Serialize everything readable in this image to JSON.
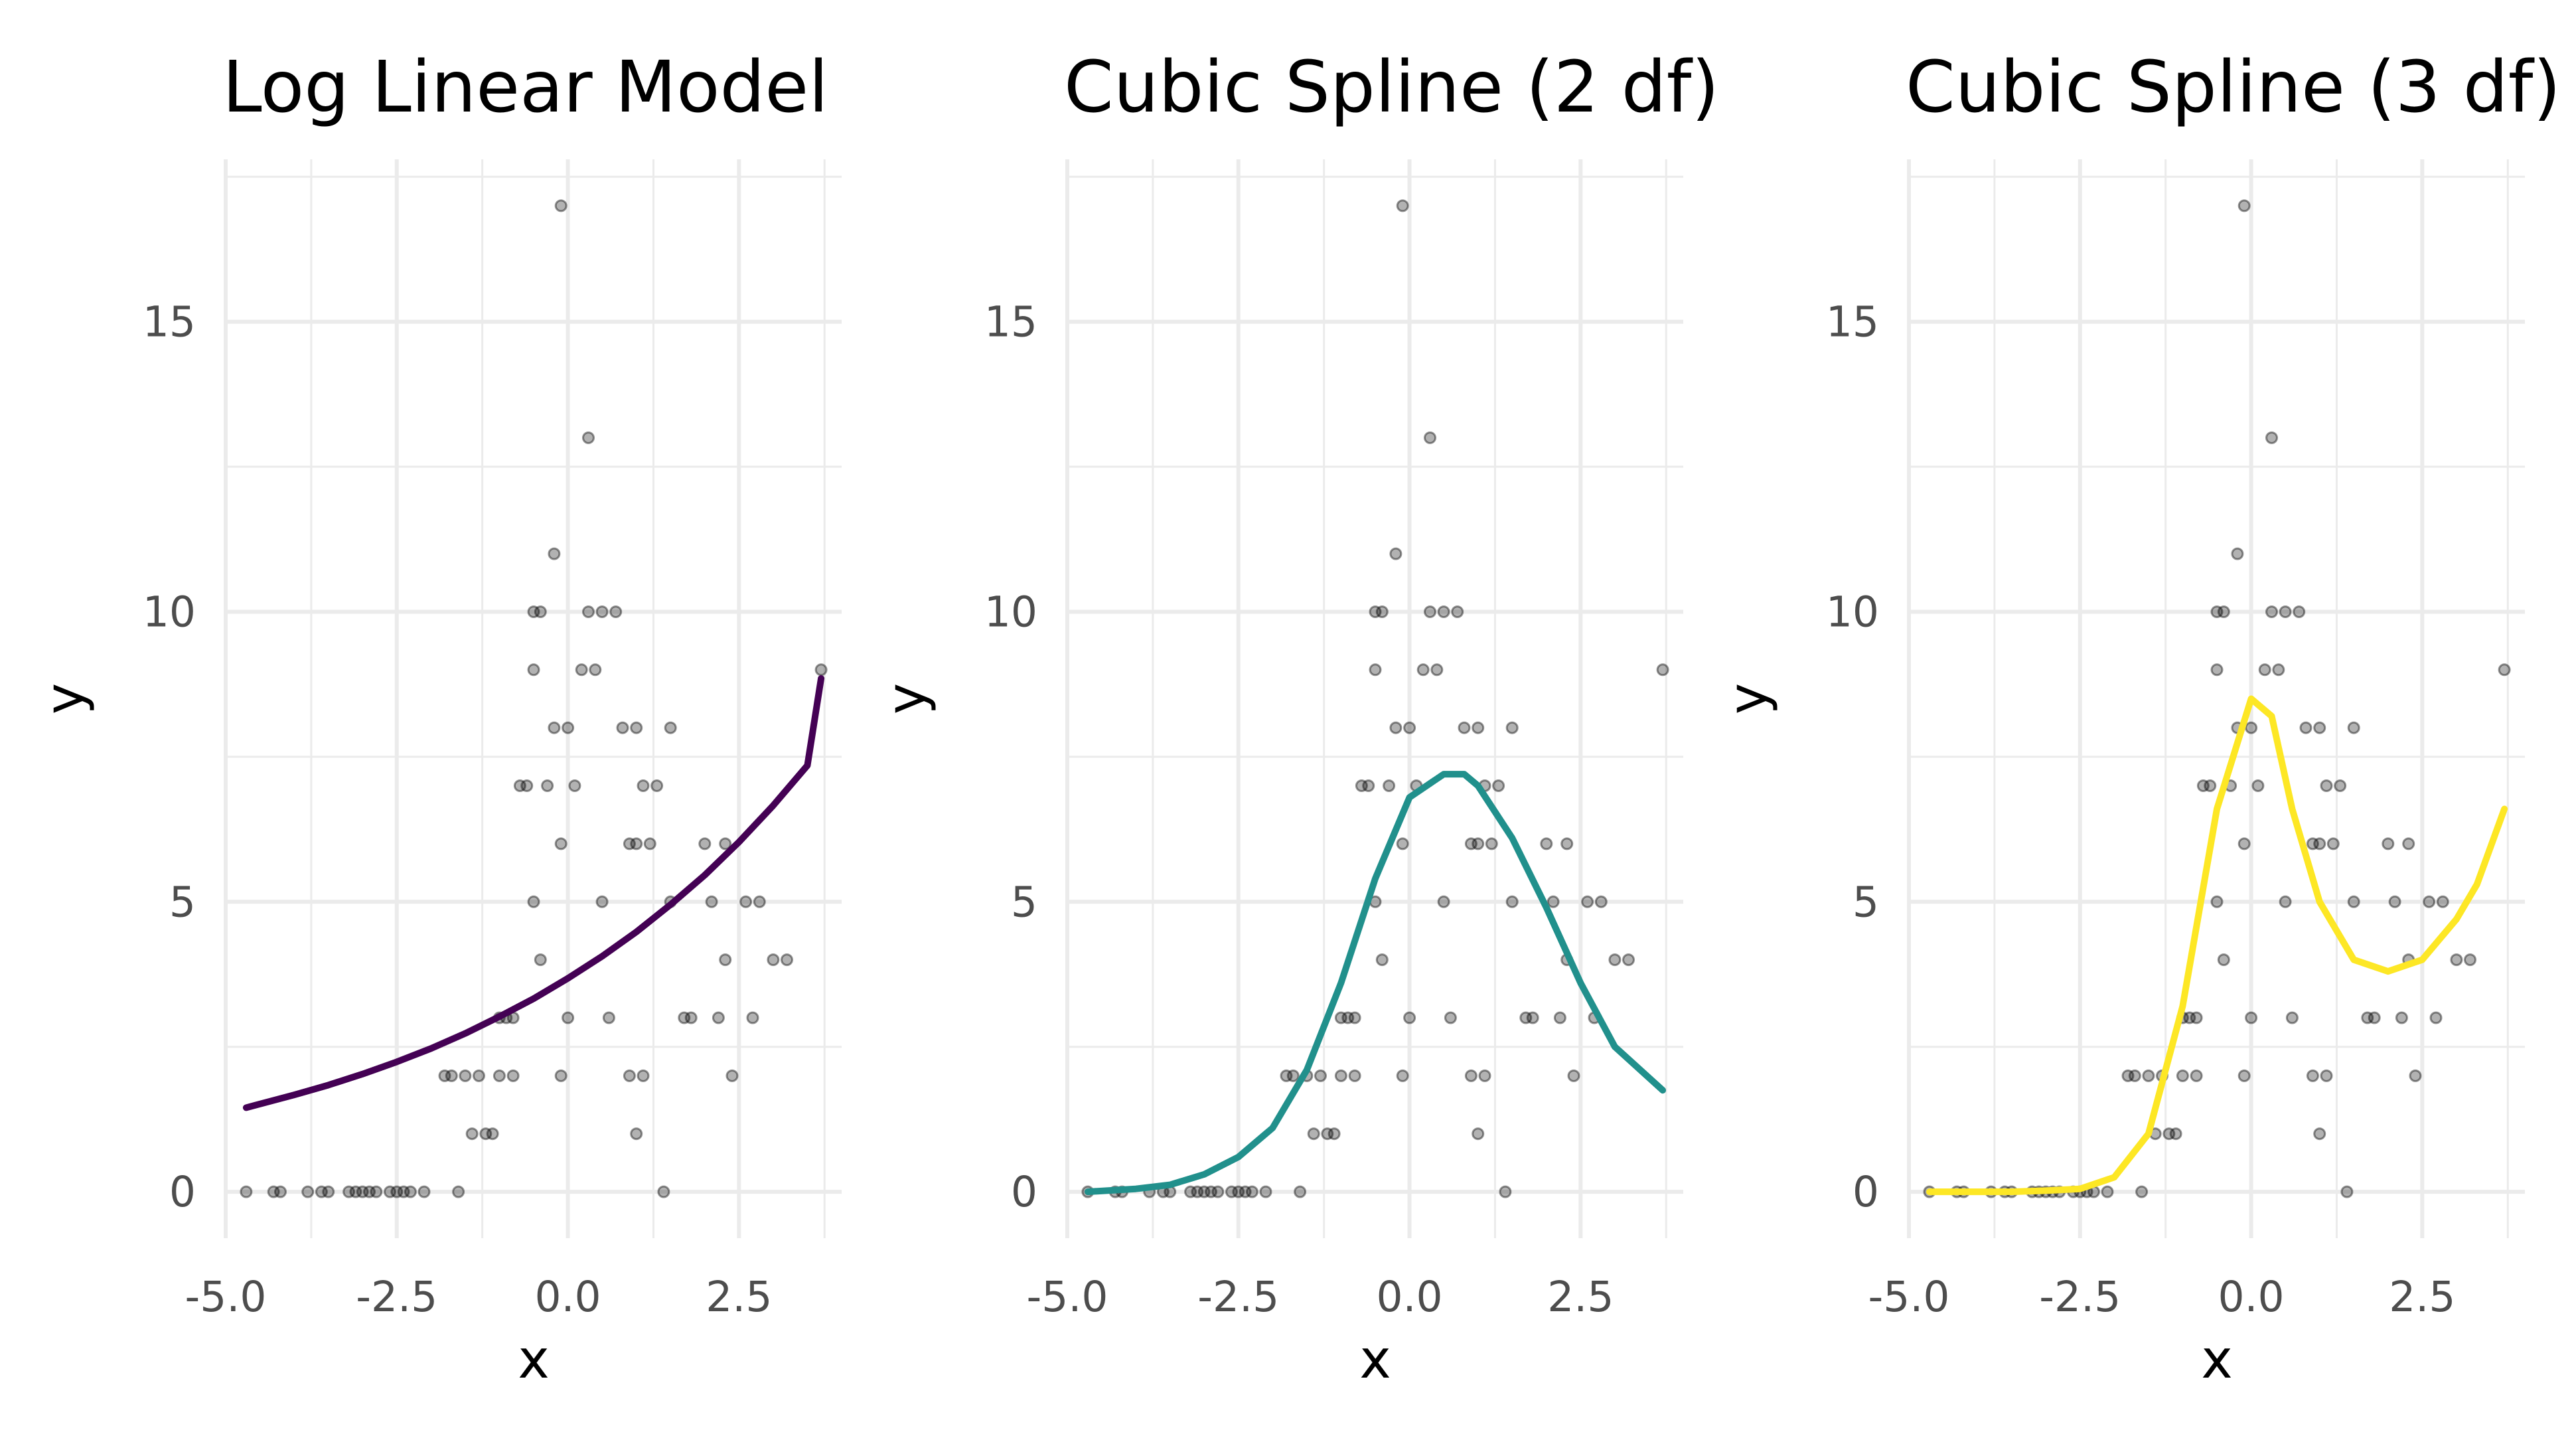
{
  "chart_data": [
    {
      "type": "scatter",
      "title": "Log Linear Model",
      "xlabel": "x",
      "ylabel": "y",
      "xlim": [
        -5.0,
        4.0
      ],
      "ylim": [
        -0.8,
        17.8
      ],
      "xticks": [
        "-5.0",
        "-2.5",
        "0.0",
        "2.5"
      ],
      "yticks": [
        "0",
        "5",
        "10",
        "15"
      ],
      "grid": true,
      "curve_color": "#440154",
      "curve": {
        "x": [
          -4.7,
          -4.0,
          -3.5,
          -3.0,
          -2.5,
          -2.0,
          -1.5,
          -1.0,
          -0.5,
          0.0,
          0.5,
          1.0,
          1.5,
          2.0,
          2.5,
          3.0,
          3.5,
          3.7
        ],
        "y": [
          1.45,
          1.67,
          1.84,
          2.03,
          2.24,
          2.47,
          2.73,
          3.02,
          3.33,
          3.68,
          4.06,
          4.48,
          4.95,
          5.46,
          6.03,
          6.66,
          7.35,
          8.85
        ]
      }
    },
    {
      "type": "scatter",
      "title": "Cubic Spline (2 df)",
      "xlabel": "x",
      "ylabel": "y",
      "xlim": [
        -5.0,
        4.0
      ],
      "ylim": [
        -0.8,
        17.8
      ],
      "xticks": [
        "-5.0",
        "-2.5",
        "0.0",
        "2.5"
      ],
      "yticks": [
        "0",
        "5",
        "10",
        "15"
      ],
      "grid": true,
      "curve_color": "#21908C",
      "curve": {
        "x": [
          -4.7,
          -4.0,
          -3.5,
          -3.0,
          -2.5,
          -2.0,
          -1.5,
          -1.0,
          -0.5,
          0.0,
          0.5,
          0.8,
          1.0,
          1.5,
          2.0,
          2.5,
          3.0,
          3.7
        ],
        "y": [
          0.0,
          0.05,
          0.12,
          0.3,
          0.6,
          1.1,
          2.1,
          3.6,
          5.4,
          6.8,
          7.2,
          7.2,
          7.0,
          6.1,
          4.9,
          3.6,
          2.5,
          1.75
        ]
      }
    },
    {
      "type": "scatter",
      "title": "Cubic Spline (3 df)",
      "xlabel": "x",
      "ylabel": "y",
      "xlim": [
        -5.0,
        4.0
      ],
      "ylim": [
        -0.8,
        17.8
      ],
      "xticks": [
        "-5.0",
        "-2.5",
        "0.0",
        "2.5"
      ],
      "yticks": [
        "0",
        "5",
        "10",
        "15"
      ],
      "grid": true,
      "curve_color": "#FDE725",
      "curve": {
        "x": [
          -4.7,
          -4.0,
          -3.5,
          -3.0,
          -2.5,
          -2.0,
          -1.5,
          -1.0,
          -0.5,
          0.0,
          0.3,
          0.6,
          1.0,
          1.5,
          2.0,
          2.5,
          3.0,
          3.3,
          3.7
        ],
        "y": [
          0.0,
          0.0,
          0.0,
          0.02,
          0.05,
          0.25,
          1.0,
          3.2,
          6.6,
          8.5,
          8.2,
          6.6,
          5.0,
          4.0,
          3.8,
          4.0,
          4.7,
          5.3,
          6.6
        ]
      }
    }
  ],
  "points": {
    "x": [
      -4.7,
      -4.3,
      -4.2,
      -3.8,
      -3.6,
      -3.5,
      -3.2,
      -3.1,
      -3.0,
      -2.9,
      -2.8,
      -2.6,
      -2.5,
      -2.4,
      -2.3,
      -2.1,
      -1.8,
      -1.7,
      -1.6,
      -1.5,
      -1.4,
      -1.3,
      -1.2,
      -1.1,
      -1.0,
      -1.0,
      -0.9,
      -0.8,
      -0.8,
      -0.7,
      -0.6,
      -0.5,
      -0.5,
      -0.5,
      -0.4,
      -0.4,
      -0.3,
      -0.2,
      -0.2,
      -0.1,
      -0.1,
      -0.1,
      0.0,
      0.0,
      0.1,
      0.2,
      0.3,
      0.3,
      0.4,
      0.5,
      0.5,
      0.6,
      0.7,
      0.8,
      0.9,
      0.9,
      1.0,
      1.0,
      1.0,
      1.1,
      1.1,
      1.2,
      1.3,
      1.4,
      1.5,
      1.5,
      1.7,
      1.8,
      2.0,
      2.1,
      2.2,
      2.3,
      2.3,
      2.4,
      2.6,
      2.7,
      2.8,
      3.0,
      3.2,
      3.7
    ],
    "y": [
      0,
      0,
      0,
      0,
      0,
      0,
      0,
      0,
      0,
      0,
      0,
      0,
      0,
      0,
      0,
      0,
      2,
      2,
      0,
      2,
      1,
      2,
      1,
      1,
      3,
      2,
      3,
      2,
      3,
      7,
      7,
      10,
      9,
      5,
      10,
      4,
      7,
      8,
      11,
      2,
      17,
      6,
      8,
      3,
      7,
      9,
      13,
      10,
      9,
      5,
      10,
      3,
      10,
      8,
      6,
      2,
      8,
      6,
      1,
      7,
      2,
      6,
      7,
      0,
      8,
      5,
      3,
      3,
      6,
      5,
      3,
      4,
      6,
      2,
      5,
      3,
      5,
      4,
      4,
      9
    ]
  }
}
